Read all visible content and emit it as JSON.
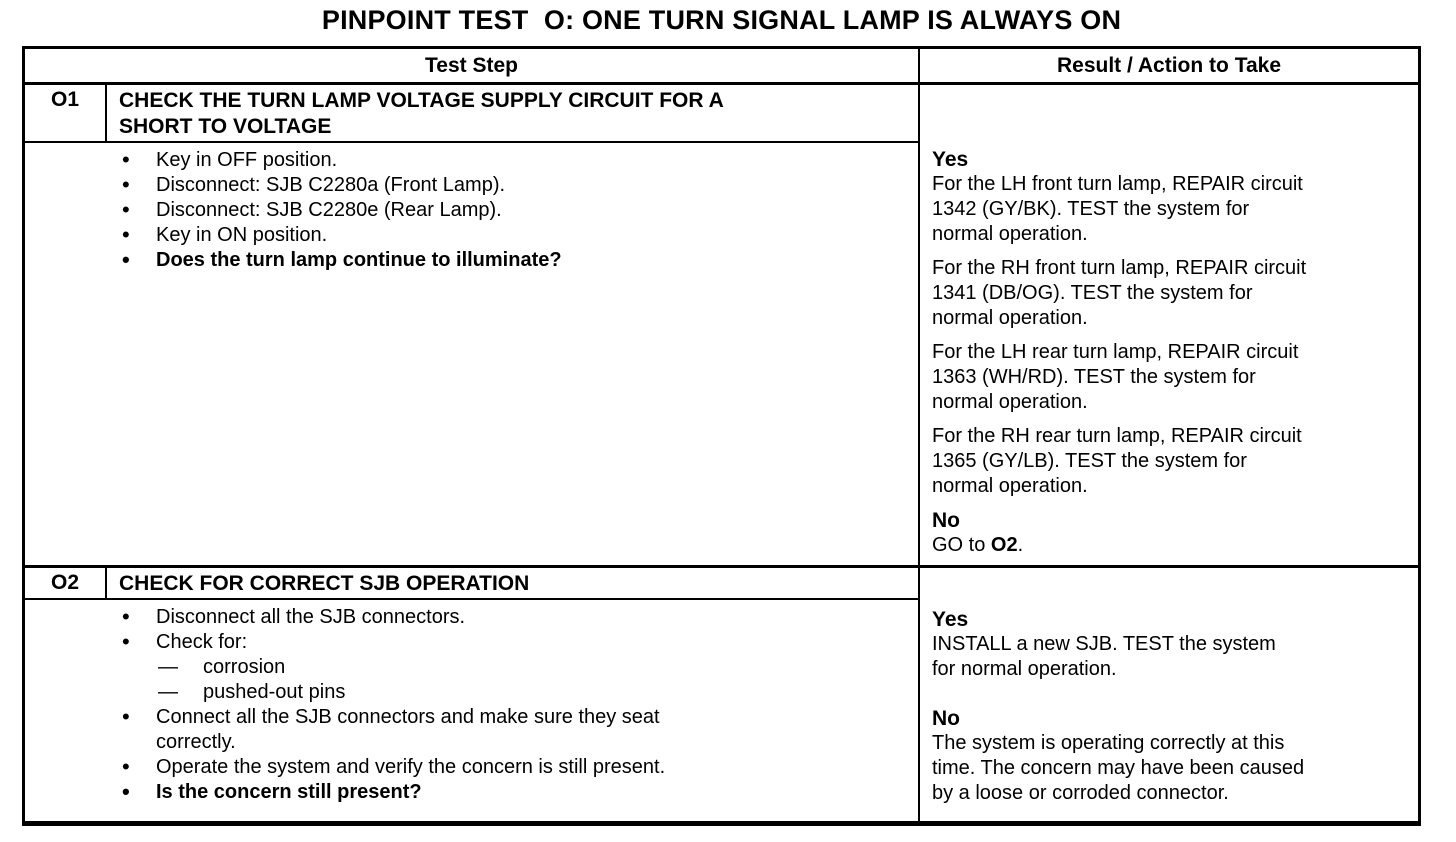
{
  "colors": {
    "ink": "#000000",
    "paper": "#ffffff"
  },
  "title": "PINPOINT TEST  O: ONE TURN SIGNAL LAMP IS ALWAYS ON",
  "table": {
    "header": {
      "test_step": "Test Step",
      "result": "Result / Action to Take"
    },
    "rows": [
      {
        "id": "O1",
        "name": "CHECK THE TURN LAMP VOLTAGE SUPPLY CIRCUIT FOR A\nSHORT TO VOLTAGE",
        "steps": [
          {
            "text": "Key in OFF position.",
            "bold": false
          },
          {
            "text": "Disconnect: SJB C2280a (Front Lamp).",
            "bold": false
          },
          {
            "text": "Disconnect: SJB C2280e (Rear Lamp).",
            "bold": false
          },
          {
            "text": "Key in ON position.",
            "bold": false
          },
          {
            "text": "Does the turn lamp continue to illuminate?",
            "bold": true
          }
        ],
        "yes": {
          "label": "Yes",
          "paragraphs": [
            "For the LH front turn lamp, REPAIR circuit\n1342 (GY/BK). TEST the system for\nnormal operation.",
            "For the RH front turn lamp, REPAIR circuit\n1341 (DB/OG). TEST the system for\nnormal operation.",
            "For the LH rear turn lamp, REPAIR circuit\n1363 (WH/RD). TEST the system for\nnormal operation.",
            "For the RH rear turn lamp, REPAIR circuit\n1365 (GY/LB). TEST the system for\nnormal operation."
          ]
        },
        "no": {
          "label": "No",
          "action_prefix": "GO to ",
          "action_bold": "O2",
          "action_suffix": "."
        }
      },
      {
        "id": "O2",
        "name": "CHECK FOR CORRECT SJB OPERATION",
        "steps": [
          {
            "text": "Disconnect all the SJB connectors.",
            "bold": false
          },
          {
            "text": "Check for:",
            "bold": false,
            "sub": [
              "corrosion",
              "pushed-out pins"
            ]
          },
          {
            "text": "Connect all the SJB connectors and make sure they seat\ncorrectly.",
            "bold": false
          },
          {
            "text": "Operate the system and verify the concern is still present.",
            "bold": false
          },
          {
            "text": "Is the concern still present?",
            "bold": true
          }
        ],
        "yes": {
          "label": "Yes",
          "paragraphs": [
            "INSTALL a new SJB. TEST the system\nfor normal operation."
          ]
        },
        "no": {
          "label": "No",
          "paragraphs": [
            "The system is operating correctly at this\ntime. The concern may have been caused\nby a loose or corroded connector."
          ]
        }
      }
    ]
  }
}
